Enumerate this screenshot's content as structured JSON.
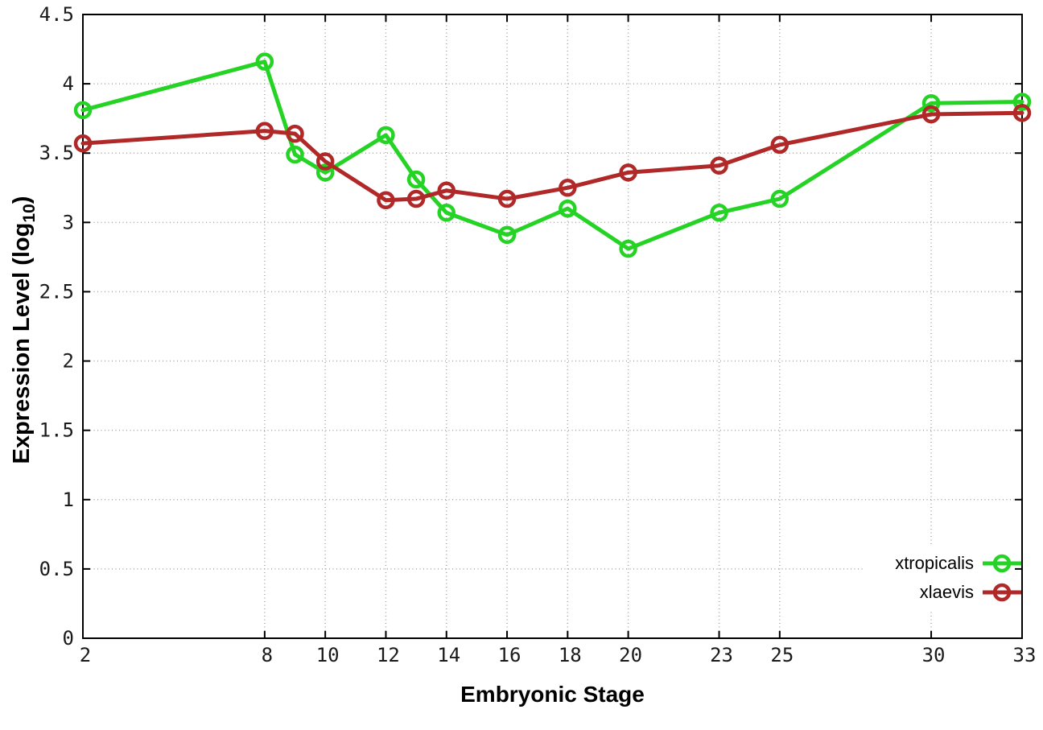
{
  "chart_data": {
    "type": "line",
    "xlabel": "Embryonic Stage",
    "ylabel": "Expression Level (log10)",
    "ylabel_parts": {
      "main": "Expression Level (log",
      "sub": "10",
      "end": ")"
    },
    "xlim": [
      2,
      33
    ],
    "ylim": [
      0,
      4.5
    ],
    "grid": true,
    "legend_position": "bottom-right",
    "grid_color": "#a6a6a6",
    "x": [
      2,
      8,
      9,
      10,
      12,
      13,
      14,
      16,
      18,
      20,
      23,
      25,
      30,
      33
    ],
    "x_ticks": [
      {
        "value": 2,
        "label": "2"
      },
      {
        "value": 8,
        "label": "8"
      },
      {
        "value": 10,
        "label": "10"
      },
      {
        "value": 12,
        "label": "12"
      },
      {
        "value": 14,
        "label": "14"
      },
      {
        "value": 16,
        "label": "16"
      },
      {
        "value": 18,
        "label": "18"
      },
      {
        "value": 20,
        "label": "20"
      },
      {
        "value": 23,
        "label": "23"
      },
      {
        "value": 25,
        "label": "25"
      },
      {
        "value": 30,
        "label": "30"
      },
      {
        "value": 33,
        "label": "33"
      }
    ],
    "y_ticks": [
      {
        "value": 0,
        "label": "0"
      },
      {
        "value": 0.5,
        "label": "0.5"
      },
      {
        "value": 1,
        "label": "1"
      },
      {
        "value": 1.5,
        "label": "1.5"
      },
      {
        "value": 2,
        "label": "2"
      },
      {
        "value": 2.5,
        "label": "2.5"
      },
      {
        "value": 3,
        "label": "3"
      },
      {
        "value": 3.5,
        "label": "3.5"
      },
      {
        "value": 4,
        "label": "4"
      },
      {
        "value": 4.5,
        "label": "4.5"
      }
    ],
    "series": [
      {
        "name": "xtropicalis",
        "color": "#24d324",
        "values": [
          3.81,
          4.16,
          3.49,
          3.36,
          3.63,
          3.31,
          3.07,
          2.91,
          3.1,
          2.81,
          3.07,
          3.17,
          3.86,
          3.87
        ]
      },
      {
        "name": "xlaevis",
        "color": "#b02828",
        "values": [
          3.57,
          3.66,
          3.64,
          3.44,
          3.16,
          3.17,
          3.23,
          3.17,
          3.25,
          3.36,
          3.41,
          3.56,
          3.78,
          3.79
        ]
      }
    ]
  }
}
